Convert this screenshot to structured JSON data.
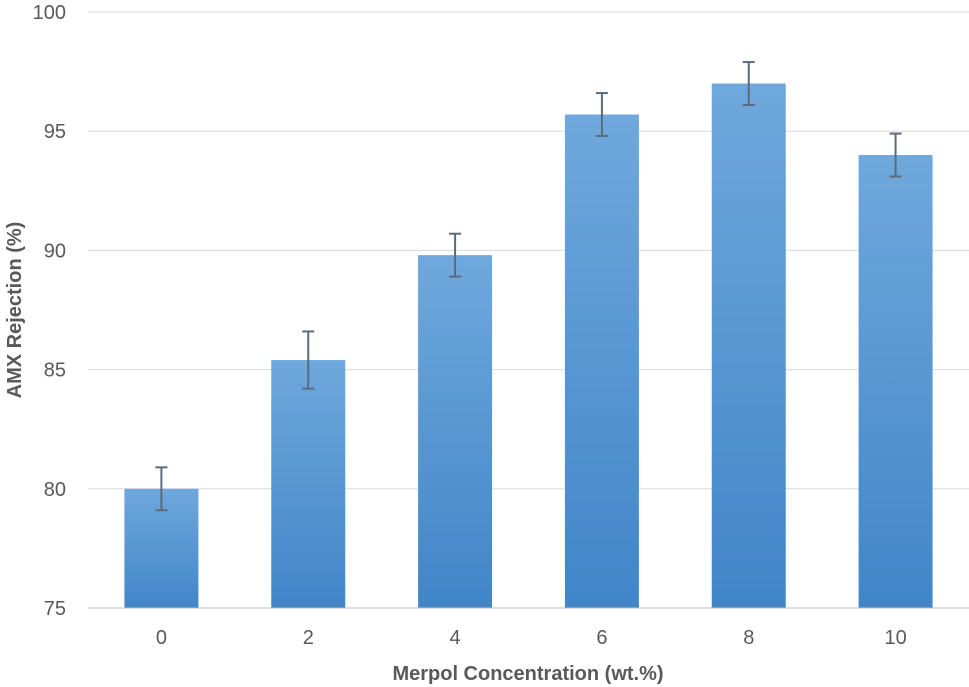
{
  "chart_data": {
    "type": "bar",
    "title": "",
    "xlabel": "Merpol Concentration (wt.%)",
    "ylabel": "AMX Rejection (%)",
    "categories": [
      "0",
      "2",
      "4",
      "6",
      "8",
      "10"
    ],
    "series": [
      {
        "values": [
          80.0,
          85.4,
          89.8,
          95.7,
          97.0,
          94.0
        ],
        "error": [
          0.9,
          1.2,
          0.9,
          0.9,
          0.9,
          0.9
        ]
      }
    ],
    "ylim": [
      75,
      100
    ],
    "yticks": [
      75,
      80,
      85,
      90,
      95,
      100
    ],
    "grid": true,
    "legend": "none",
    "colors": {
      "bar_top": "#6fa8dc",
      "bar_bottom": "#4185c9",
      "error_bar": "#5b6b7a",
      "grid": "#d9d9d9",
      "axis": "#bfbfbf",
      "text": "#595959"
    }
  }
}
